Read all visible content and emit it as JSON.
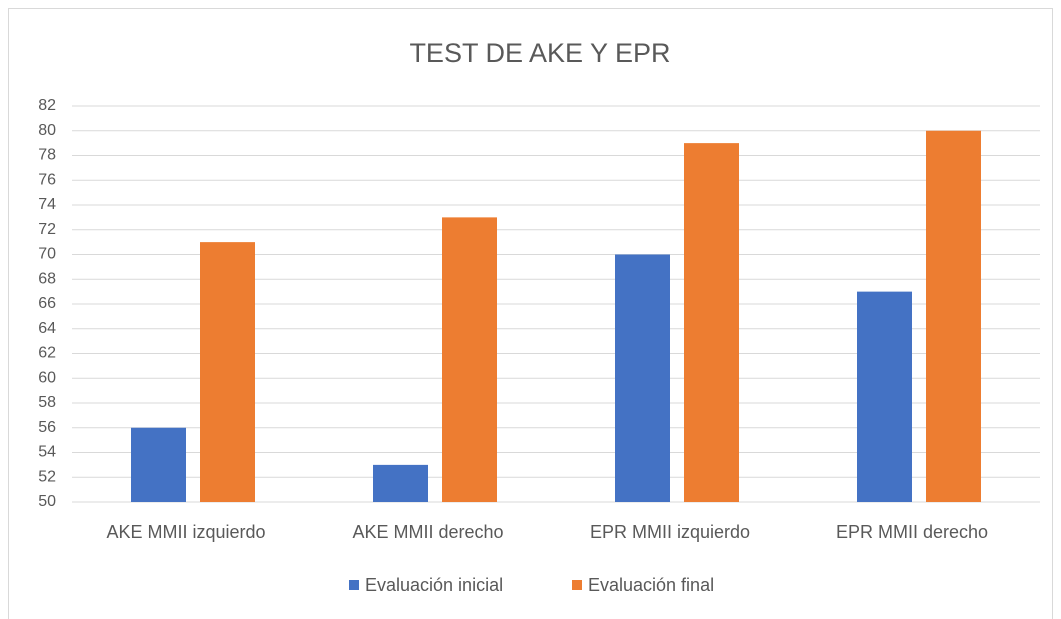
{
  "chart_data": {
    "type": "bar",
    "title": "TEST DE AKE Y EPR",
    "categories": [
      "AKE MMII izquierdo",
      "AKE MMII derecho",
      "EPR MMII izquierdo",
      "EPR MMII derecho"
    ],
    "series": [
      {
        "name": "Evaluación inicial",
        "color": "#4472c4",
        "values": [
          56,
          53,
          70,
          67
        ]
      },
      {
        "name": "Evaluación final",
        "color": "#ed7d31",
        "values": [
          71,
          73,
          79,
          80
        ]
      }
    ],
    "ylim": [
      50,
      82
    ],
    "yticks": [
      50,
      52,
      54,
      56,
      58,
      60,
      62,
      64,
      66,
      68,
      70,
      72,
      74,
      76,
      78,
      80,
      82
    ],
    "grid": true,
    "legend": "bottom"
  }
}
